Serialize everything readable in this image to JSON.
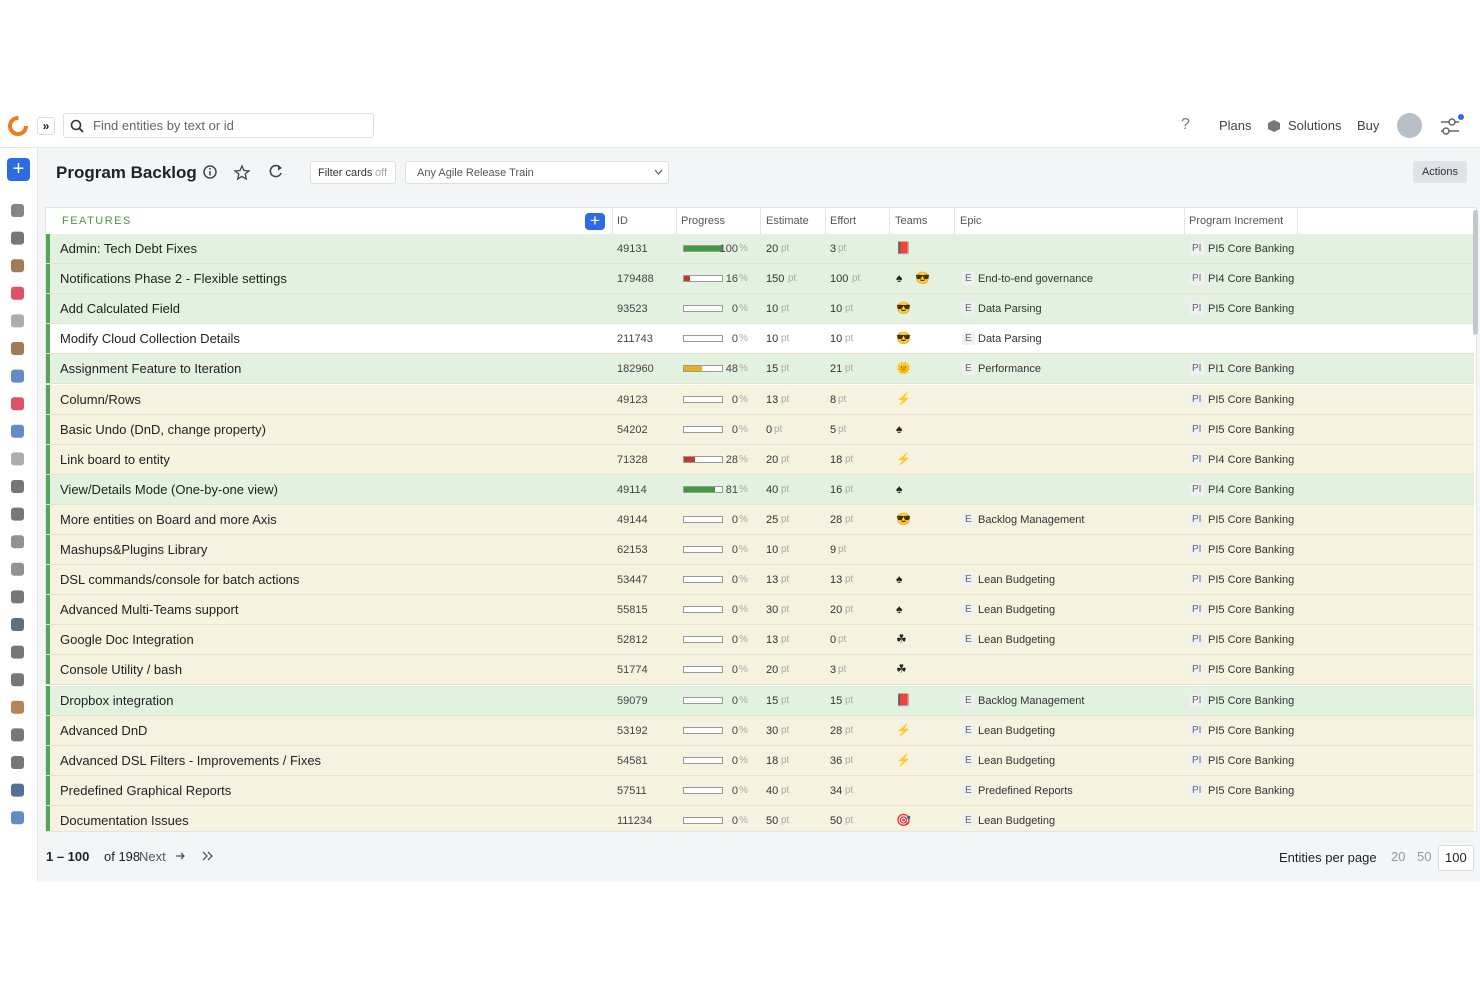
{
  "header": {
    "search_placeholder": "Find entities by text or id",
    "help": "?",
    "nav": [
      "Plans",
      "Solutions",
      "Buy"
    ]
  },
  "toolbar": {
    "title": "Program Backlog",
    "filter": "Filter cards",
    "filter_state": "off",
    "release_train": "Any Agile Release Train",
    "actions": "Actions"
  },
  "units": {
    "percent": "%",
    "points": "pt",
    "epic_badge": "E",
    "pi_badge": "PI"
  },
  "table": {
    "columns": [
      "FEATURES",
      "ID",
      "Progress",
      "Estimate",
      "Effort",
      "Teams",
      "Epic",
      "Program Increment"
    ],
    "rows": [
      {
        "name": "Admin: Tech Debt Fixes",
        "id": 49131,
        "progress": 100,
        "bar_color": "#3e9a3e",
        "estimate": 20,
        "effort": 3,
        "teams": [
          "📕"
        ],
        "epic": null,
        "pi": "PI5 Core Banking",
        "color": "#e3f1e1"
      },
      {
        "name": "Notifications Phase 2 - Flexible settings",
        "id": 179488,
        "progress": 16,
        "bar_color": "#c0392b",
        "estimate": 150,
        "effort": 100,
        "teams": [
          "♠",
          "😎"
        ],
        "epic": "End-to-end governance",
        "pi": "PI4 Core Banking",
        "color": "#e3f1e1"
      },
      {
        "name": "Add Calculated Field",
        "id": 93523,
        "progress": 0,
        "estimate": 10,
        "effort": 10,
        "teams": [
          "😎"
        ],
        "epic": "Data Parsing",
        "pi": "PI5 Core Banking",
        "color": "#e3f1e1"
      },
      {
        "name": "Modify Cloud Collection Details",
        "id": 211743,
        "progress": 0,
        "estimate": 10,
        "effort": 10,
        "teams": [
          "😎"
        ],
        "epic": "Data Parsing",
        "pi": null,
        "color": "#ffffff"
      },
      {
        "name": "Assignment Feature to Iteration",
        "id": 182960,
        "progress": 48,
        "bar_color": "#e8b21c",
        "estimate": 15,
        "effort": 21,
        "teams": [
          "🌞"
        ],
        "epic": "Performance",
        "pi": "PI1 Core Banking",
        "color": "#e3f1e1"
      },
      {
        "name": "Column/Rows",
        "id": 49123,
        "progress": 0,
        "estimate": 13,
        "effort": 8,
        "teams": [
          "⚡"
        ],
        "epic": null,
        "pi": "PI5 Core Banking",
        "color": "#f5f2df"
      },
      {
        "name": "Basic Undo (DnD, change property)",
        "id": 54202,
        "progress": 0,
        "estimate": 0,
        "effort": 5,
        "teams": [
          "♠"
        ],
        "epic": null,
        "pi": "PI5 Core Banking",
        "color": "#f5f2df"
      },
      {
        "name": "Link board to entity",
        "id": 71328,
        "progress": 28,
        "bar_color": "#c0392b",
        "estimate": 20,
        "effort": 18,
        "teams": [
          "⚡"
        ],
        "epic": null,
        "pi": "PI4 Core Banking",
        "color": "#f5f2df"
      },
      {
        "name": "View/Details Mode (One-by-one view)",
        "id": 49114,
        "progress": 81,
        "bar_color": "#3e9a3e",
        "estimate": 40,
        "effort": 16,
        "teams": [
          "♠"
        ],
        "epic": null,
        "pi": "PI4 Core Banking",
        "color": "#e3f1e1"
      },
      {
        "name": "More entities on Board and more Axis",
        "id": 49144,
        "progress": 0,
        "estimate": 25,
        "effort": 28,
        "teams": [
          "😎"
        ],
        "epic": "Backlog Management",
        "pi": "PI5 Core Banking",
        "color": "#f5f2df"
      },
      {
        "name": "Mashups&Plugins Library",
        "id": 62153,
        "progress": 0,
        "estimate": 10,
        "effort": 9,
        "teams": [],
        "epic": null,
        "pi": "PI5 Core Banking",
        "color": "#f5f2df"
      },
      {
        "name": "DSL commands/console for batch actions",
        "id": 53447,
        "progress": 0,
        "estimate": 13,
        "effort": 13,
        "teams": [
          "♠"
        ],
        "epic": "Lean Budgeting",
        "pi": "PI5 Core Banking",
        "color": "#f5f2df"
      },
      {
        "name": "Advanced Multi-Teams support",
        "id": 55815,
        "progress": 0,
        "estimate": 30,
        "effort": 20,
        "teams": [
          "♠"
        ],
        "epic": "Lean Budgeting",
        "pi": "PI5 Core Banking",
        "color": "#f5f2df"
      },
      {
        "name": "Google Doc Integration",
        "id": 52812,
        "progress": 0,
        "estimate": 13,
        "effort": 0,
        "teams": [
          "☘"
        ],
        "epic": "Lean Budgeting",
        "pi": "PI5 Core Banking",
        "color": "#f5f2df"
      },
      {
        "name": "Console Utility / bash",
        "id": 51774,
        "progress": 0,
        "estimate": 20,
        "effort": 3,
        "teams": [
          "☘"
        ],
        "epic": null,
        "pi": "PI5 Core Banking",
        "color": "#f5f2df"
      },
      {
        "name": "Dropbox integration",
        "id": 59079,
        "progress": 0,
        "estimate": 15,
        "effort": 15,
        "teams": [
          "📕"
        ],
        "epic": "Backlog Management",
        "pi": "PI5 Core Banking",
        "color": "#e3f1e1"
      },
      {
        "name": "Advanced DnD",
        "id": 53192,
        "progress": 0,
        "estimate": 30,
        "effort": 28,
        "teams": [
          "⚡"
        ],
        "epic": "Lean Budgeting",
        "pi": "PI5 Core Banking",
        "color": "#f5f2df"
      },
      {
        "name": "Advanced DSL Filters - Improvements / Fixes",
        "id": 54581,
        "progress": 0,
        "estimate": 18,
        "effort": 36,
        "teams": [
          "⚡"
        ],
        "epic": "Lean Budgeting",
        "pi": "PI5 Core Banking",
        "color": "#f5f2df"
      },
      {
        "name": "Predefined Graphical Reports",
        "id": 57511,
        "progress": 0,
        "estimate": 40,
        "effort": 34,
        "teams": [],
        "epic": "Predefined Reports",
        "pi": "PI5 Core Banking",
        "color": "#f5f2df"
      },
      {
        "name": "Documentation Issues",
        "id": 111234,
        "progress": 0,
        "estimate": 50,
        "effort": 50,
        "teams": [
          "🎯"
        ],
        "epic": "Lean Budgeting",
        "pi": null,
        "color": "#f5f2df"
      }
    ]
  },
  "footer": {
    "range": "1 – 100",
    "total": "of 198",
    "next": "Next",
    "per_page_label": "Entities per page",
    "page_sizes": [
      20,
      50,
      100
    ]
  }
}
